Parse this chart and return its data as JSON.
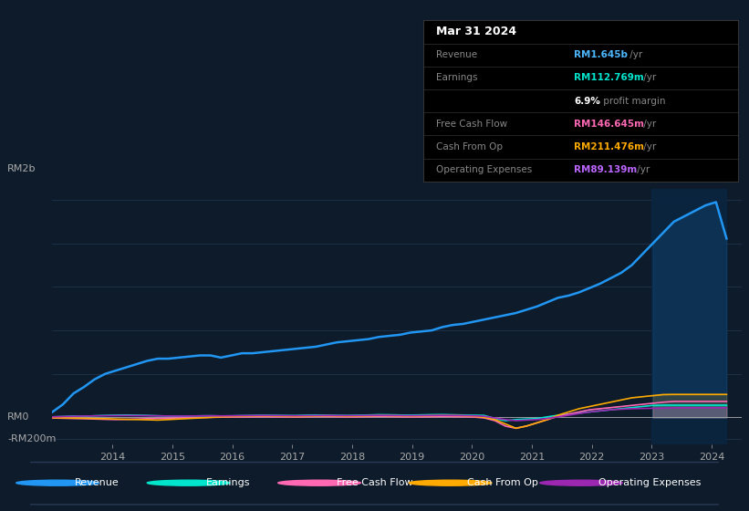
{
  "bg_color": "#0d1b2a",
  "plot_bg_color": "#0d1b2a",
  "grid_color": "#1e3048",
  "text_color": "#aaaaaa",
  "ylabel_top": "RM2b",
  "ylabel_zero": "RM0",
  "ylabel_neg": "-RM200m",
  "xlim": [
    2013.0,
    2024.5
  ],
  "ylim": [
    -250000000,
    2100000000
  ],
  "yticks": [
    -200000000,
    0,
    400000000,
    800000000,
    1200000000,
    1600000000,
    2000000000
  ],
  "xticks": [
    2014,
    2015,
    2016,
    2017,
    2018,
    2019,
    2020,
    2021,
    2022,
    2023,
    2024
  ],
  "line_colors": {
    "Revenue": "#2196f3",
    "Earnings": "#00e5cc",
    "Free Cash Flow": "#ff69b4",
    "Cash From Op": "#ffaa00",
    "Operating Expenses": "#9c27b0"
  },
  "revenue": [
    50000000,
    120000000,
    220000000,
    280000000,
    350000000,
    400000000,
    430000000,
    460000000,
    490000000,
    520000000,
    540000000,
    540000000,
    550000000,
    560000000,
    570000000,
    570000000,
    550000000,
    570000000,
    590000000,
    590000000,
    600000000,
    610000000,
    620000000,
    630000000,
    640000000,
    650000000,
    670000000,
    690000000,
    700000000,
    710000000,
    720000000,
    740000000,
    750000000,
    760000000,
    780000000,
    790000000,
    800000000,
    830000000,
    850000000,
    860000000,
    880000000,
    900000000,
    920000000,
    940000000,
    960000000,
    990000000,
    1020000000,
    1060000000,
    1100000000,
    1120000000,
    1150000000,
    1190000000,
    1230000000,
    1280000000,
    1330000000,
    1400000000,
    1500000000,
    1600000000,
    1700000000,
    1800000000,
    1850000000,
    1900000000,
    1950000000,
    1980000000,
    1645000000
  ],
  "earnings": [
    5000000,
    8000000,
    12000000,
    10000000,
    15000000,
    18000000,
    20000000,
    22000000,
    20000000,
    18000000,
    15000000,
    12000000,
    10000000,
    12000000,
    14000000,
    15000000,
    13000000,
    14000000,
    16000000,
    18000000,
    20000000,
    19000000,
    18000000,
    17000000,
    20000000,
    22000000,
    21000000,
    19000000,
    18000000,
    20000000,
    22000000,
    25000000,
    24000000,
    22000000,
    21000000,
    23000000,
    25000000,
    26000000,
    24000000,
    22000000,
    20000000,
    18000000,
    -10000000,
    -30000000,
    -20000000,
    -15000000,
    -10000000,
    5000000,
    20000000,
    30000000,
    40000000,
    50000000,
    60000000,
    70000000,
    80000000,
    90000000,
    100000000,
    110000000,
    112769000,
    112769000,
    112769000,
    112769000,
    112769000,
    112769000,
    112769000
  ],
  "free_cash_flow": [
    -5000000,
    -8000000,
    -10000000,
    -12000000,
    -15000000,
    -18000000,
    -20000000,
    -18000000,
    -15000000,
    -12000000,
    -10000000,
    -8000000,
    -5000000,
    -3000000,
    -2000000,
    0,
    2000000,
    3000000,
    4000000,
    5000000,
    6000000,
    5000000,
    4000000,
    3000000,
    5000000,
    7000000,
    8000000,
    6000000,
    4000000,
    5000000,
    7000000,
    9000000,
    8000000,
    6000000,
    4000000,
    5000000,
    7000000,
    9000000,
    8000000,
    6000000,
    3000000,
    -5000000,
    -30000000,
    -80000000,
    -100000000,
    -80000000,
    -50000000,
    -20000000,
    10000000,
    30000000,
    50000000,
    70000000,
    80000000,
    90000000,
    100000000,
    110000000,
    120000000,
    130000000,
    140000000,
    146645000,
    146645000,
    146645000,
    146645000,
    146645000,
    146645000
  ],
  "cash_from_op": [
    -3000000,
    -5000000,
    -7000000,
    -8000000,
    -10000000,
    -12000000,
    -15000000,
    -18000000,
    -20000000,
    -22000000,
    -25000000,
    -20000000,
    -15000000,
    -10000000,
    -5000000,
    0,
    5000000,
    8000000,
    10000000,
    12000000,
    14000000,
    12000000,
    10000000,
    8000000,
    10000000,
    12000000,
    15000000,
    13000000,
    10000000,
    12000000,
    14000000,
    17000000,
    16000000,
    14000000,
    12000000,
    14000000,
    16000000,
    18000000,
    17000000,
    15000000,
    10000000,
    0,
    -20000000,
    -60000000,
    -100000000,
    -80000000,
    -50000000,
    -20000000,
    20000000,
    50000000,
    80000000,
    100000000,
    120000000,
    140000000,
    160000000,
    180000000,
    190000000,
    200000000,
    210000000,
    211476000,
    211476000,
    211476000,
    211476000,
    211476000,
    211476000
  ],
  "operating_expenses": [
    5000000,
    8000000,
    10000000,
    12000000,
    14000000,
    15000000,
    16000000,
    17000000,
    16000000,
    15000000,
    14000000,
    13000000,
    12000000,
    13000000,
    14000000,
    15000000,
    14000000,
    15000000,
    16000000,
    17000000,
    18000000,
    17000000,
    16000000,
    15000000,
    16000000,
    17000000,
    18000000,
    17000000,
    16000000,
    17000000,
    18000000,
    19000000,
    18000000,
    17000000,
    16000000,
    17000000,
    18000000,
    19000000,
    18000000,
    17000000,
    15000000,
    10000000,
    -5000000,
    -20000000,
    -30000000,
    -25000000,
    -20000000,
    -10000000,
    5000000,
    20000000,
    35000000,
    50000000,
    60000000,
    70000000,
    75000000,
    80000000,
    82000000,
    84000000,
    86000000,
    88000000,
    89139000,
    89139000,
    89139000,
    89139000,
    89139000
  ],
  "n_years_start": 2013.0,
  "n_years_end": 2024.25,
  "highlight_x_start": 2023.0,
  "highlight_x_end": 2024.25,
  "info_rows": [
    {
      "label": "Mar 31 2024",
      "value": "",
      "value_color": "#ffffff",
      "is_header": true
    },
    {
      "label": "Revenue",
      "value": "RM1.645b",
      "suffix": " /yr",
      "value_color": "#4db8ff",
      "is_header": false
    },
    {
      "label": "Earnings",
      "value": "RM112.769m",
      "suffix": " /yr",
      "value_color": "#00e5cc",
      "is_header": false
    },
    {
      "label": "",
      "value": "6.9%",
      "suffix": " profit margin",
      "value_color": "#ffffff",
      "is_header": false
    },
    {
      "label": "Free Cash Flow",
      "value": "RM146.645m",
      "suffix": " /yr",
      "value_color": "#ff69b4",
      "is_header": false
    },
    {
      "label": "Cash From Op",
      "value": "RM211.476m",
      "suffix": " /yr",
      "value_color": "#ffaa00",
      "is_header": false
    },
    {
      "label": "Operating Expenses",
      "value": "RM89.139m",
      "suffix": " /yr",
      "value_color": "#bb66ff",
      "is_header": false
    }
  ],
  "legend_items": [
    {
      "label": "Revenue",
      "color": "#2196f3"
    },
    {
      "label": "Earnings",
      "color": "#00e5cc"
    },
    {
      "label": "Free Cash Flow",
      "color": "#ff69b4"
    },
    {
      "label": "Cash From Op",
      "color": "#ffaa00"
    },
    {
      "label": "Operating Expenses",
      "color": "#9c27b0"
    }
  ]
}
